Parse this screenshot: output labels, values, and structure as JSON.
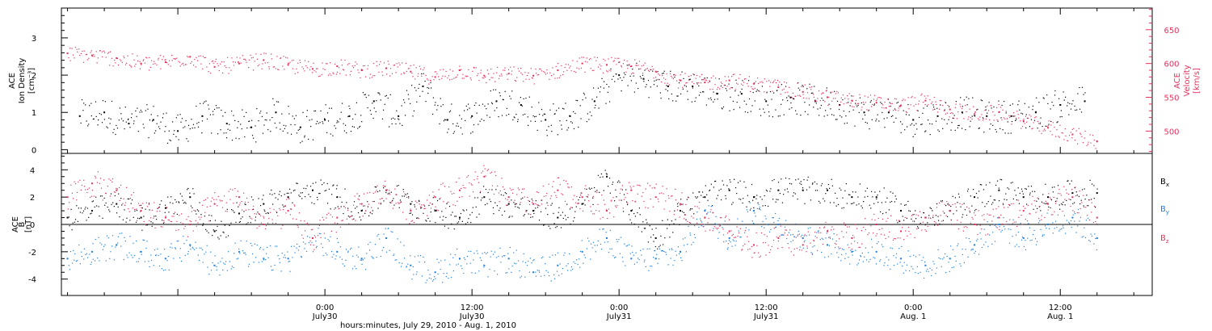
{
  "figure": {
    "xlabel": "hours:minutes, July 29, 2010 - Aug.  1, 2010",
    "colors": {
      "black": "#000000",
      "pink": "#e8305c",
      "blue": "#1a7fe0"
    },
    "x_axis": {
      "range_hours": [
        -21.5,
        67.5
      ],
      "ticks": [
        {
          "hour": 0,
          "time": "0:00",
          "day": "July30"
        },
        {
          "hour": 12,
          "time": "12:00",
          "day": "July30"
        },
        {
          "hour": 24,
          "time": "0:00",
          "day": "July31"
        },
        {
          "hour": 36,
          "time": "12:00",
          "day": "July31"
        },
        {
          "hour": 48,
          "time": "0:00",
          "day": "Aug. 1"
        },
        {
          "hour": 60,
          "time": "12:00",
          "day": "Aug. 1"
        }
      ]
    }
  },
  "chart_data": [
    {
      "type": "scatter",
      "panel": "top",
      "ylabel_left": [
        "ACE",
        "Ion Density",
        "[cm⁻³]"
      ],
      "ylabel_right": [
        "ACE",
        "Velocity",
        "[km/s]"
      ],
      "ylim_left": [
        -0.1,
        3.8
      ],
      "ylim_right": [
        467,
        682
      ],
      "yticks_left": [
        0,
        1,
        2,
        3
      ],
      "yticks_right": [
        500,
        550,
        600,
        650
      ],
      "series": [
        {
          "color": "black",
          "axis": "left",
          "x_hours": [
            -20,
            -18,
            -16,
            -14,
            -12,
            -10,
            -8,
            -6,
            -4,
            -2,
            0,
            2,
            4,
            6,
            8,
            10,
            12,
            14,
            16,
            18,
            20,
            22,
            24,
            26,
            28,
            30,
            32,
            34,
            36,
            38,
            40,
            42,
            44,
            46,
            48,
            50,
            52,
            54,
            56,
            58,
            60,
            62
          ],
          "y": [
            0.9,
            1.0,
            0.7,
            0.8,
            0.5,
            0.9,
            0.7,
            0.6,
            1.0,
            0.6,
            0.8,
            0.9,
            1.3,
            0.9,
            1.7,
            0.8,
            0.9,
            1.3,
            1.2,
            0.8,
            0.9,
            1.3,
            2.0,
            1.9,
            1.7,
            1.7,
            1.5,
            1.5,
            1.3,
            1.4,
            1.3,
            1.2,
            1.0,
            1.0,
            0.8,
            0.9,
            1.0,
            0.9,
            0.9,
            1.0,
            1.2,
            1.3
          ]
        },
        {
          "color": "pink",
          "axis": "right",
          "x_hours": [
            -21,
            -19,
            -17,
            -15,
            -13,
            -11,
            -9,
            -7,
            -5,
            -3,
            -1,
            1,
            3,
            5,
            7,
            9,
            11,
            13,
            15,
            17,
            19,
            21,
            23,
            25,
            27,
            29,
            31,
            33,
            35,
            37,
            39,
            41,
            43,
            45,
            47,
            49,
            51,
            53,
            55,
            57,
            59,
            61,
            63
          ],
          "y": [
            615,
            612,
            608,
            600,
            602,
            610,
            595,
            600,
            605,
            598,
            592,
            596,
            590,
            593,
            588,
            580,
            590,
            582,
            585,
            582,
            590,
            600,
            598,
            596,
            588,
            575,
            572,
            575,
            570,
            565,
            558,
            550,
            545,
            542,
            538,
            545,
            532,
            525,
            528,
            515,
            505,
            495,
            485
          ]
        }
      ]
    },
    {
      "type": "scatter",
      "panel": "bottom",
      "ylabel_left": [
        "ACE",
        "B",
        "[nT]"
      ],
      "ylim": [
        -5.2,
        5.2
      ],
      "yticks": [
        -4,
        -2,
        0,
        2,
        4
      ],
      "zero_line": true,
      "series": [
        {
          "name": "Bx",
          "color": "black",
          "x_hours": [
            -21,
            -19,
            -17,
            -15,
            -13,
            -11,
            -9,
            -7,
            -5,
            -3,
            -1,
            1,
            3,
            5,
            7,
            9,
            11,
            13,
            15,
            17,
            19,
            21,
            23,
            25,
            27,
            29,
            31,
            33,
            35,
            37,
            39,
            41,
            43,
            45,
            47,
            49,
            51,
            53,
            55,
            57,
            59,
            61,
            63
          ],
          "y": [
            0.5,
            1.0,
            1.5,
            0.5,
            1.2,
            2.0,
            -0.5,
            0.8,
            1.5,
            2.0,
            2.5,
            2.0,
            1.0,
            2.5,
            1.5,
            1.0,
            0.5,
            2.0,
            1.5,
            1.0,
            0.5,
            1.5,
            3.5,
            1.0,
            -1.0,
            1.0,
            2.0,
            2.5,
            2.0,
            2.5,
            2.5,
            2.5,
            2.0,
            2.0,
            1.0,
            0.5,
            1.0,
            2.0,
            2.5,
            2.0,
            2.0,
            2.3,
            2.3
          ]
        },
        {
          "name": "By",
          "color": "blue",
          "x_hours": [
            -21,
            -19,
            -17,
            -15,
            -13,
            -11,
            -9,
            -7,
            -5,
            -3,
            -1,
            1,
            3,
            5,
            7,
            9,
            11,
            13,
            15,
            17,
            19,
            21,
            23,
            25,
            27,
            29,
            31,
            33,
            35,
            37,
            39,
            41,
            43,
            45,
            47,
            49,
            51,
            53,
            55,
            57,
            59,
            61,
            63
          ],
          "y": [
            -2.5,
            -2.0,
            -1.5,
            -2.0,
            -2.5,
            -1.5,
            -3.0,
            -2.0,
            -2.5,
            -2.5,
            -1.0,
            -2.0,
            -2.5,
            -1.0,
            -3.0,
            -3.5,
            -2.5,
            -3.0,
            -2.5,
            -3.5,
            -3.0,
            -2.0,
            -1.0,
            -2.5,
            -2.5,
            -2.0,
            1.0,
            -1.0,
            1.0,
            0.0,
            -1.0,
            -1.5,
            -2.0,
            -2.0,
            -2.5,
            -3.0,
            -2.5,
            -1.5,
            0.0,
            -1.0,
            0.0,
            0.5,
            -1.0
          ]
        },
        {
          "name": "Bz",
          "color": "pink",
          "x_hours": [
            -21,
            -19,
            -17,
            -15,
            -13,
            -11,
            -9,
            -7,
            -5,
            -3,
            -1,
            1,
            3,
            5,
            7,
            9,
            11,
            13,
            15,
            17,
            19,
            21,
            23,
            25,
            27,
            29,
            31,
            33,
            35,
            37,
            39,
            41,
            43,
            45,
            47,
            49,
            51,
            53,
            55,
            57,
            59,
            61,
            63
          ],
          "y": [
            2.0,
            3.0,
            2.5,
            1.0,
            0.5,
            0.0,
            1.5,
            2.0,
            0.0,
            1.0,
            -1.0,
            0.5,
            1.5,
            2.5,
            1.0,
            2.0,
            2.5,
            3.5,
            2.0,
            1.5,
            2.5,
            2.0,
            1.0,
            2.5,
            2.0,
            1.5,
            0.5,
            -0.5,
            -1.5,
            -1.0,
            -1.5,
            -0.5,
            -1.0,
            0.0,
            -0.5,
            0.5,
            1.0,
            0.0,
            0.5,
            1.0,
            1.5,
            2.0,
            0.5
          ]
        }
      ]
    }
  ]
}
